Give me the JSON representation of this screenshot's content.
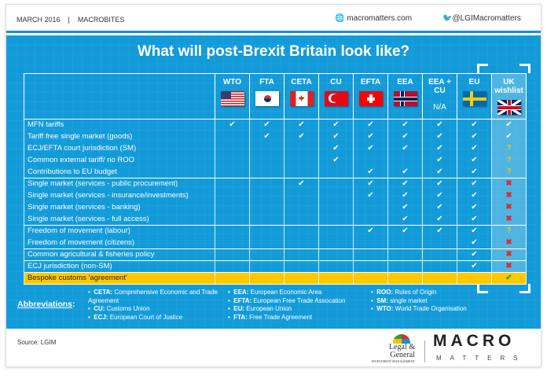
{
  "header": {
    "date": "MARCH 2016",
    "separator": "|",
    "series": "MACROBITES",
    "website": "macromatters.com",
    "twitter": "@LGIMacromatters"
  },
  "title": "What will post-Brexit Britain look like?",
  "columns": [
    {
      "label": "WTO",
      "flag": "usa"
    },
    {
      "label": "FTA",
      "flag": "south-korea"
    },
    {
      "label": "CETA",
      "flag": "canada"
    },
    {
      "label": "CU",
      "flag": "turkey"
    },
    {
      "label": "EFTA",
      "flag": "switzerland"
    },
    {
      "label": "EEA",
      "flag": "norway"
    },
    {
      "label": "EEA + CU",
      "na": "N/A"
    },
    {
      "label": "EU",
      "flag": "sweden"
    },
    {
      "label": "UK wishlist",
      "flag": "uk"
    }
  ],
  "legend_symbols": {
    "Y": "✔",
    "?": "?",
    "X": "✖"
  },
  "rows": [
    {
      "label": "MFN tariffs",
      "v": [
        "Y",
        "Y",
        "Y",
        "Y",
        "Y",
        "Y",
        "Y",
        "Y",
        "Y"
      ],
      "group_start": true
    },
    {
      "label": "Tariff free single market (goods)",
      "v": [
        "",
        "Y",
        "Y",
        "Y",
        "Y",
        "Y",
        "Y",
        "Y",
        "Y"
      ]
    },
    {
      "label": "ECJ/EFTA court jurisdiction (SM)",
      "v": [
        "",
        "",
        "",
        "Y",
        "Y",
        "Y",
        "Y",
        "Y",
        "?"
      ]
    },
    {
      "label": "Common external tariff/ no ROO",
      "v": [
        "",
        "",
        "",
        "Y",
        "",
        "",
        "Y",
        "Y",
        "?"
      ]
    },
    {
      "label": "Contributions to EU budget",
      "v": [
        "",
        "",
        "",
        "",
        "Y",
        "Y",
        "Y",
        "Y",
        "?"
      ]
    },
    {
      "label": "Single market (services - public procurement)",
      "v": [
        "",
        "",
        "Y",
        "",
        "Y",
        "Y",
        "Y",
        "Y",
        "X"
      ],
      "group_start": true
    },
    {
      "label": "Single market (services - insurance/investments)",
      "v": [
        "",
        "",
        "",
        "",
        "Y",
        "Y",
        "Y",
        "Y",
        "X"
      ]
    },
    {
      "label": "Single market (services - banking)",
      "v": [
        "",
        "",
        "",
        "",
        "",
        "Y",
        "Y",
        "Y",
        "X"
      ]
    },
    {
      "label": "Single market (services - full access)",
      "v": [
        "",
        "",
        "",
        "",
        "",
        "Y",
        "Y",
        "Y",
        "X"
      ]
    },
    {
      "label": "Freedom of movement (labour)",
      "v": [
        "",
        "",
        "",
        "",
        "Y",
        "Y",
        "Y",
        "Y",
        "?"
      ],
      "group_start": true
    },
    {
      "label": "Freedom of movement (citizens)",
      "v": [
        "",
        "",
        "",
        "",
        "",
        "",
        "",
        "Y",
        "X"
      ]
    },
    {
      "label": "Common agricultural & fisheries policy",
      "v": [
        "",
        "",
        "",
        "",
        "",
        "",
        "",
        "Y",
        "X"
      ],
      "group_start": true
    },
    {
      "label": "ECJ jurisdiction (non-SM)",
      "v": [
        "",
        "",
        "",
        "",
        "",
        "",
        "",
        "Y",
        "X"
      ],
      "group_start": true
    },
    {
      "label": "Bespoke customs 'agreement'",
      "v": [
        "",
        "",
        "",
        "",
        "",
        "",
        "",
        "",
        "G"
      ],
      "group_start": true,
      "highlight": true
    }
  ],
  "abbreviations": {
    "label": "Abbreviations",
    "colon": ":",
    "items": [
      {
        "k": "CETA:",
        "v": "Comprehensive Economic and Trade Agreement"
      },
      {
        "k": "CU:",
        "v": "Customs Union"
      },
      {
        "k": "ECJ:",
        "v": "European Court of Justice"
      },
      {
        "k": "EEA:",
        "v": "European Economic Area"
      },
      {
        "k": "EFTA:",
        "v": "European Free Trade Assocation"
      },
      {
        "k": "EU:",
        "v": "European Union"
      },
      {
        "k": "FTA:",
        "v": "Free Trade Agreement"
      },
      {
        "k": "ROO:",
        "v": "Rules of Origin"
      },
      {
        "k": "SM:",
        "v": "single market"
      },
      {
        "k": "WTO:",
        "v": "World Trade Organisation"
      }
    ]
  },
  "footer": {
    "source": "Source: LGIM",
    "lg_logo": "Legal & General",
    "lg_sub": "INVESTMENT MANAGEMENT",
    "macro": "MACRO",
    "matters": "MATTERS"
  },
  "colors": {
    "panel": "#139bd9",
    "highlight": "#ffc800",
    "question": "#f5c400",
    "cross": "#e3262b",
    "green": "#2ea02e"
  }
}
